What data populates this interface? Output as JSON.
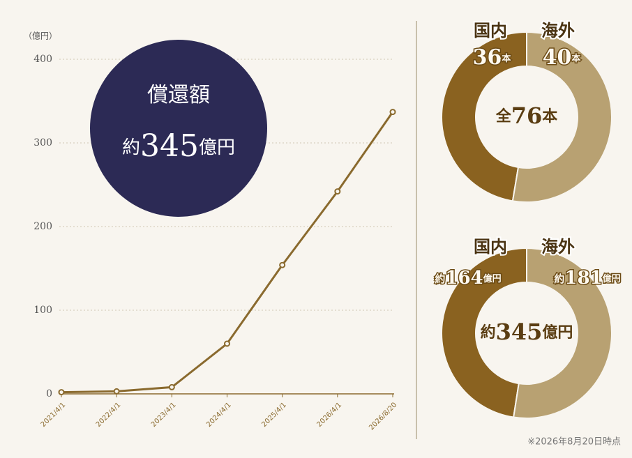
{
  "chart_data": [
    {
      "type": "line",
      "y_unit_label": "（億円）",
      "categories": [
        "2021/4/1",
        "2022/4/1",
        "2023/4/1",
        "2024/4/1",
        "2025/4/1",
        "2026/4/1",
        "2026/8/20"
      ],
      "values": [
        2,
        3,
        8,
        60,
        154,
        242,
        337
      ],
      "color": "#8a6a2e",
      "ylim": [
        0,
        400
      ],
      "yticks": [
        0,
        100,
        200,
        300,
        400
      ],
      "grid": true,
      "badge": {
        "title": "償還額",
        "prefix": "約",
        "value": 345,
        "unit": "億円",
        "color": "#2c2a55"
      }
    },
    {
      "type": "pie",
      "categories": [
        "国内",
        "海外"
      ],
      "values": [
        36,
        40
      ],
      "unit": "本",
      "colors": [
        "#8a6220",
        "#b8a172"
      ],
      "center": {
        "prefix": "全",
        "value": 76,
        "unit": "本"
      }
    },
    {
      "type": "pie",
      "categories": [
        "国内",
        "海外"
      ],
      "values": [
        164,
        181
      ],
      "value_prefix": "約",
      "unit": "億円",
      "colors": [
        "#8a6220",
        "#b8a172"
      ],
      "center": {
        "prefix": "約",
        "value": 345,
        "unit": "億円"
      }
    }
  ],
  "footnote": "※2026年8月20日時点"
}
